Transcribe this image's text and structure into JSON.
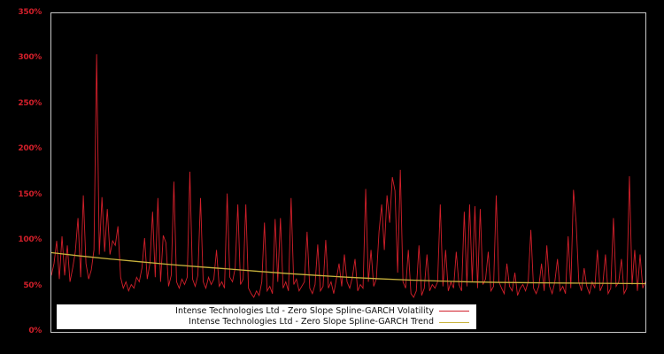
{
  "colors": {
    "background": "#000000",
    "plot_border": "#c8c8c8",
    "axis_label": "#d21f2a",
    "volatility_line": "#d21f2a",
    "trend_line": "#c8b23c",
    "legend_background": "#ffffff",
    "legend_text": "#111111"
  },
  "legend": {
    "volatility_label": "Intense Technologies Ltd - Zero Slope Spline-GARCH Volatility",
    "trend_label": "Intense Technologies Ltd - Zero Slope Spline-GARCH Trend"
  },
  "chart_data": {
    "type": "line",
    "title": "",
    "xlabel": "",
    "ylabel": "",
    "ylim": [
      0,
      350
    ],
    "yticks": [
      0,
      50,
      100,
      150,
      200,
      250,
      300,
      350
    ],
    "ytick_suffix": "%",
    "x_axis_labels": "none",
    "grid": false,
    "legend_position": "inside-bottom-left",
    "series": [
      {
        "name": "Intense Technologies Ltd - Zero Slope Spline-GARCH Volatility",
        "color": "#d21f2a",
        "unit": "%",
        "values": [
          62,
          75,
          100,
          58,
          105,
          62,
          95,
          55,
          70,
          88,
          125,
          60,
          150,
          75,
          58,
          68,
          90,
          305,
          85,
          148,
          88,
          135,
          85,
          100,
          95,
          116,
          60,
          48,
          55,
          45,
          52,
          48,
          60,
          55,
          70,
          103,
          58,
          75,
          132,
          60,
          147,
          55,
          106,
          98,
          50,
          62,
          165,
          55,
          48,
          58,
          52,
          60,
          176,
          58,
          50,
          62,
          147,
          55,
          48,
          60,
          52,
          58,
          90,
          50,
          55,
          48,
          152,
          60,
          55,
          70,
          140,
          52,
          58,
          140,
          48,
          42,
          38,
          45,
          40,
          55,
          120,
          45,
          50,
          42,
          124,
          55,
          125,
          48,
          55,
          45,
          147,
          52,
          58,
          45,
          50,
          55,
          110,
          48,
          42,
          52,
          96,
          45,
          50,
          101,
          48,
          55,
          42,
          58,
          75,
          50,
          85,
          55,
          48,
          60,
          80,
          45,
          52,
          48,
          157,
          55,
          90,
          50,
          58,
          110,
          140,
          90,
          150,
          120,
          170,
          155,
          65,
          178,
          55,
          48,
          90,
          42,
          38,
          45,
          95,
          40,
          48,
          85,
          45,
          52,
          48,
          55,
          140,
          50,
          90,
          45,
          55,
          48,
          88,
          52,
          45,
          132,
          50,
          140,
          55,
          138,
          48,
          135,
          52,
          58,
          88,
          45,
          50,
          150,
          55,
          48,
          42,
          75,
          50,
          45,
          65,
          40,
          48,
          52,
          45,
          55,
          112,
          48,
          42,
          50,
          75,
          45,
          95,
          50,
          42,
          55,
          80,
          45,
          50,
          42,
          105,
          48,
          156,
          120,
          55,
          45,
          70,
          50,
          42,
          55,
          48,
          90,
          45,
          52,
          85,
          42,
          48,
          125,
          50,
          55,
          80,
          42,
          48,
          171,
          52,
          90,
          45,
          85,
          48,
          55
        ]
      },
      {
        "name": "Intense Technologies Ltd - Zero Slope Spline-GARCH Trend",
        "color": "#c8b23c",
        "unit": "%",
        "points": [
          [
            0,
            87
          ],
          [
            0.05,
            83.3
          ],
          [
            0.1,
            80
          ],
          [
            0.15,
            77
          ],
          [
            0.2,
            74
          ],
          [
            0.25,
            71.4
          ],
          [
            0.3,
            69
          ],
          [
            0.35,
            66.4
          ],
          [
            0.4,
            64
          ],
          [
            0.45,
            61.9
          ],
          [
            0.5,
            60
          ],
          [
            0.55,
            58.4
          ],
          [
            0.6,
            57
          ],
          [
            0.65,
            55.9
          ],
          [
            0.7,
            55
          ],
          [
            0.75,
            54.4
          ],
          [
            0.8,
            54
          ],
          [
            0.85,
            53.7
          ],
          [
            0.9,
            53.5
          ],
          [
            0.95,
            53.2
          ],
          [
            1,
            53
          ]
        ]
      }
    ]
  }
}
